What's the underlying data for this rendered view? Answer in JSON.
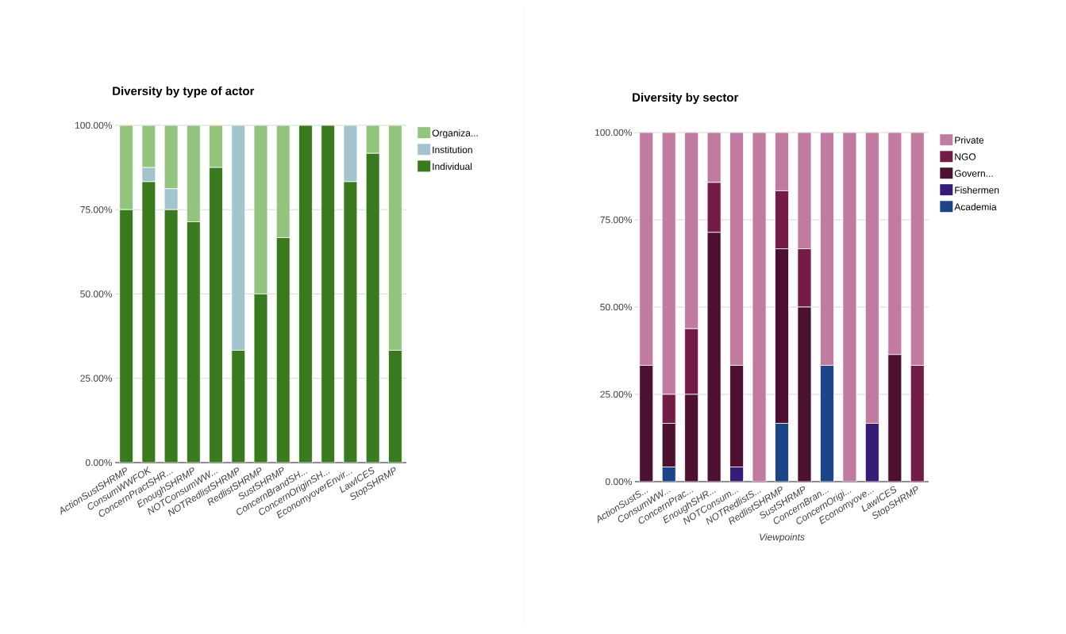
{
  "chart_data": [
    {
      "type": "bar",
      "title": "Diversity by type of actor",
      "stacked": true,
      "grid": "y",
      "legend": "right",
      "categories": [
        "ActionSustSHRMP",
        "ConsumWWFOK",
        "ConcernPractSHR...",
        "EnoughSHRMP",
        "NOTConsumWW...",
        "NOTRedlistSHRMP",
        "RedlistSHRMP",
        "SustSHRMP",
        "ConcernBrandSH...",
        "ConcernOriginSH...",
        "EconomyoverEnvir...",
        "LawICES",
        "StopSHRMP"
      ],
      "ylim": [
        0,
        100
      ],
      "yticks": [
        {
          "value": 0,
          "label": "0.00%"
        },
        {
          "value": 25,
          "label": "25.00%"
        },
        {
          "value": 50,
          "label": "50.00%"
        },
        {
          "value": 75,
          "label": "75.00%"
        },
        {
          "value": 100,
          "label": "100.00%"
        }
      ],
      "series": [
        {
          "name": "Individual",
          "color": "#3a7a1e",
          "values": [
            75,
            83.3,
            75,
            71.4,
            87.5,
            33.3,
            50,
            66.7,
            100,
            100,
            83.3,
            91.7,
            33.3
          ]
        },
        {
          "name": "Institution",
          "color": "#a3c4cc",
          "values": [
            0,
            4.2,
            6.2,
            0,
            0,
            66.7,
            0,
            0,
            0,
            0,
            16.7,
            0,
            0
          ]
        },
        {
          "name": "Organiza...",
          "color": "#93c47d",
          "values": [
            25,
            12.5,
            18.8,
            28.6,
            12.5,
            0,
            50,
            33.3,
            0,
            0,
            0,
            8.3,
            66.7
          ]
        }
      ]
    },
    {
      "type": "bar",
      "title": "Diversity by sector",
      "xlabel": "Viewpoints",
      "stacked": true,
      "grid": "y",
      "legend": "right",
      "categories": [
        "ActionSustS...",
        "ConsumWW...",
        "ConcernPrac...",
        "EnoughSHR...",
        "NOTConsum...",
        "NOTRedlistS...",
        "RedlistSHRMP",
        "SustSHRMP",
        "ConcernBran...",
        "ConcernOrigi...",
        "Economyove...",
        "LawICES",
        "StopSHRMP"
      ],
      "ylim": [
        0,
        100
      ],
      "yticks": [
        {
          "value": 0,
          "label": "0.00%"
        },
        {
          "value": 25,
          "label": "25.00%"
        },
        {
          "value": 50,
          "label": "50.00%"
        },
        {
          "value": 75,
          "label": "75.00%"
        },
        {
          "value": 100,
          "label": "100.00%"
        }
      ],
      "series": [
        {
          "name": "Academia",
          "color": "#1c4587",
          "values": [
            0,
            4.2,
            0,
            0,
            0,
            0,
            16.7,
            0,
            33.3,
            0,
            0,
            0,
            0
          ]
        },
        {
          "name": "Fishermen",
          "color": "#351c75",
          "values": [
            0,
            0,
            0,
            0,
            4.2,
            0,
            0,
            0,
            0,
            0,
            16.7,
            0,
            0
          ]
        },
        {
          "name": "Govern...",
          "color": "#4c1130",
          "values": [
            33.3,
            12.5,
            25,
            71.4,
            29.1,
            0,
            50,
            50,
            0,
            0,
            0,
            36.4,
            0
          ]
        },
        {
          "name": "NGO",
          "color": "#741b47",
          "values": [
            0,
            8.3,
            18.8,
            14.3,
            0,
            0,
            16.6,
            16.7,
            0,
            0,
            0,
            0,
            33.3
          ]
        },
        {
          "name": "Private",
          "color": "#c27ba0",
          "values": [
            66.7,
            75,
            56.2,
            14.3,
            66.7,
            100,
            16.7,
            33.3,
            66.7,
            100,
            83.3,
            63.6,
            66.7
          ]
        }
      ]
    }
  ]
}
